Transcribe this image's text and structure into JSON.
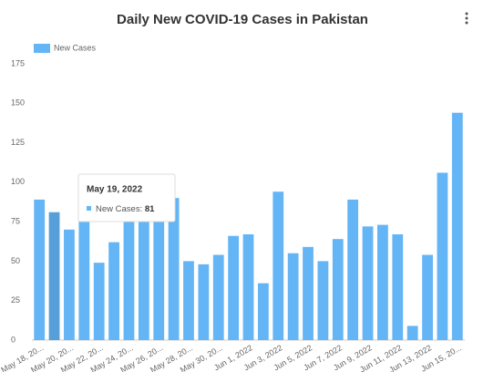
{
  "chart_data": {
    "type": "bar",
    "title": "Daily New COVID-19 Cases in Pakistan",
    "categories": [
      "May 18, 20...",
      null,
      "May 20, 20...",
      null,
      "May 22, 20...",
      null,
      "May 24, 20...",
      null,
      "May 26, 20...",
      null,
      "May 28, 20...",
      null,
      "May 30, 20...",
      null,
      "Jun 1, 2022",
      null,
      "Jun 3, 2022",
      null,
      "Jun 5, 2022",
      null,
      "Jun 7, 2022",
      null,
      "Jun 9, 2022",
      null,
      "Jun 11, 2022",
      null,
      "Jun 13, 2022",
      null,
      "Jun 15, 20..."
    ],
    "series": [
      {
        "name": "New Cases",
        "color": "#64b5f6",
        "values": [
          89,
          81,
          70,
          80,
          49,
          62,
          80,
          78,
          80,
          90,
          50,
          48,
          54,
          66,
          67,
          36,
          94,
          55,
          59,
          50,
          64,
          89,
          72,
          73,
          67,
          9,
          54,
          106,
          144
        ]
      }
    ],
    "ylim": [
      0,
      175
    ],
    "yticks": [
      0,
      25,
      50,
      75,
      100,
      125,
      150,
      175
    ],
    "grid": false,
    "legend": "top-left",
    "tooltip": {
      "title": "May 19, 2022",
      "label": "New Cases:"
    }
  }
}
